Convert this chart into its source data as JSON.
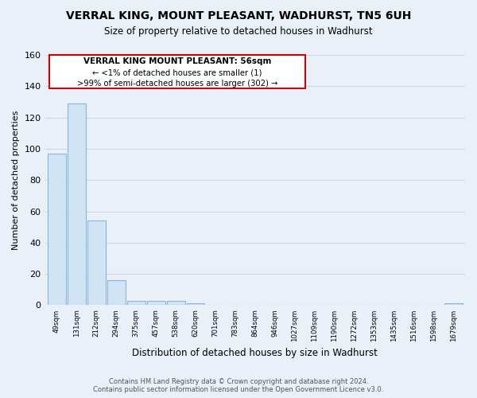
{
  "title": "VERRAL KING, MOUNT PLEASANT, WADHURST, TN5 6UH",
  "subtitle": "Size of property relative to detached houses in Wadhurst",
  "xlabel": "Distribution of detached houses by size in Wadhurst",
  "ylabel": "Number of detached properties",
  "bin_labels": [
    "49sqm",
    "131sqm",
    "212sqm",
    "294sqm",
    "375sqm",
    "457sqm",
    "538sqm",
    "620sqm",
    "701sqm",
    "783sqm",
    "864sqm",
    "946sqm",
    "1027sqm",
    "1109sqm",
    "1190sqm",
    "1272sqm",
    "1353sqm",
    "1435sqm",
    "1516sqm",
    "1598sqm",
    "1679sqm"
  ],
  "bar_heights": [
    97,
    129,
    54,
    16,
    3,
    3,
    3,
    1,
    0,
    0,
    0,
    0,
    0,
    0,
    0,
    0,
    0,
    0,
    0,
    0,
    1
  ],
  "bar_color": "#d0e4f5",
  "bar_edge_color": "#8ab4d8",
  "ylim": [
    0,
    160
  ],
  "yticks": [
    0,
    20,
    40,
    60,
    80,
    100,
    120,
    140,
    160
  ],
  "annotation_title": "VERRAL KING MOUNT PLEASANT: 56sqm",
  "annotation_line1": "← <1% of detached houses are smaller (1)",
  "annotation_line2": ">99% of semi-detached houses are larger (302) →",
  "footer_line1": "Contains HM Land Registry data © Crown copyright and database right 2024.",
  "footer_line2": "Contains public sector information licensed under the Open Government Licence v3.0.",
  "bg_color": "#eaf0f8",
  "plot_bg_color": "#eaf0f8",
  "grid_color": "#c8d8e8"
}
